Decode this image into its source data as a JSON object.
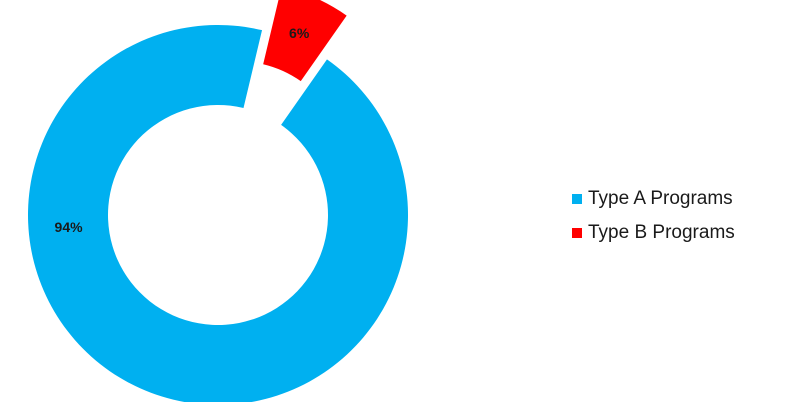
{
  "chart_data": {
    "type": "pie",
    "style": "donut",
    "exploded_slice": "Type B Programs",
    "legend_position": "right",
    "slices": [
      {
        "name": "Type A Programs",
        "value": 94,
        "label": "94%",
        "color": "#00B0F0"
      },
      {
        "name": "Type B Programs",
        "value": 6,
        "label": "6%",
        "color": "#FF0000"
      }
    ]
  }
}
